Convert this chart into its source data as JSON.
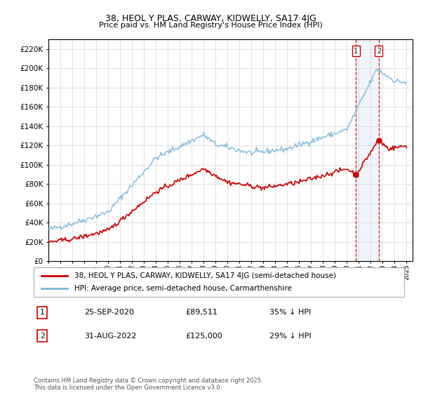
{
  "title": "38, HEOL Y PLAS, CARWAY, KIDWELLY, SA17 4JG",
  "subtitle": "Price paid vs. HM Land Registry's House Price Index (HPI)",
  "ylim": [
    0,
    230000
  ],
  "yticks": [
    0,
    20000,
    40000,
    60000,
    80000,
    100000,
    120000,
    140000,
    160000,
    180000,
    200000,
    220000
  ],
  "year_start": 1995,
  "year_end": 2025,
  "hpi_color": "#7ab8d9",
  "price_color": "#cc0000",
  "highlight_bg": "#ddeeff",
  "dashed_color": "#cc0000",
  "legend_items": [
    "38, HEOL Y PLAS, CARWAY, KIDWELLY, SA17 4JG (semi-detached house)",
    "HPI: Average price, semi-detached house, Carmarthenshire"
  ],
  "transaction1_date": "25-SEP-2020",
  "transaction1_price": "£89,511",
  "transaction1_hpi": "35% ↓ HPI",
  "transaction2_date": "31-AUG-2022",
  "transaction2_price": "£125,000",
  "transaction2_hpi": "29% ↓ HPI",
  "footer": "Contains HM Land Registry data © Crown copyright and database right 2025.\nThis data is licensed under the Open Government Licence v3.0."
}
